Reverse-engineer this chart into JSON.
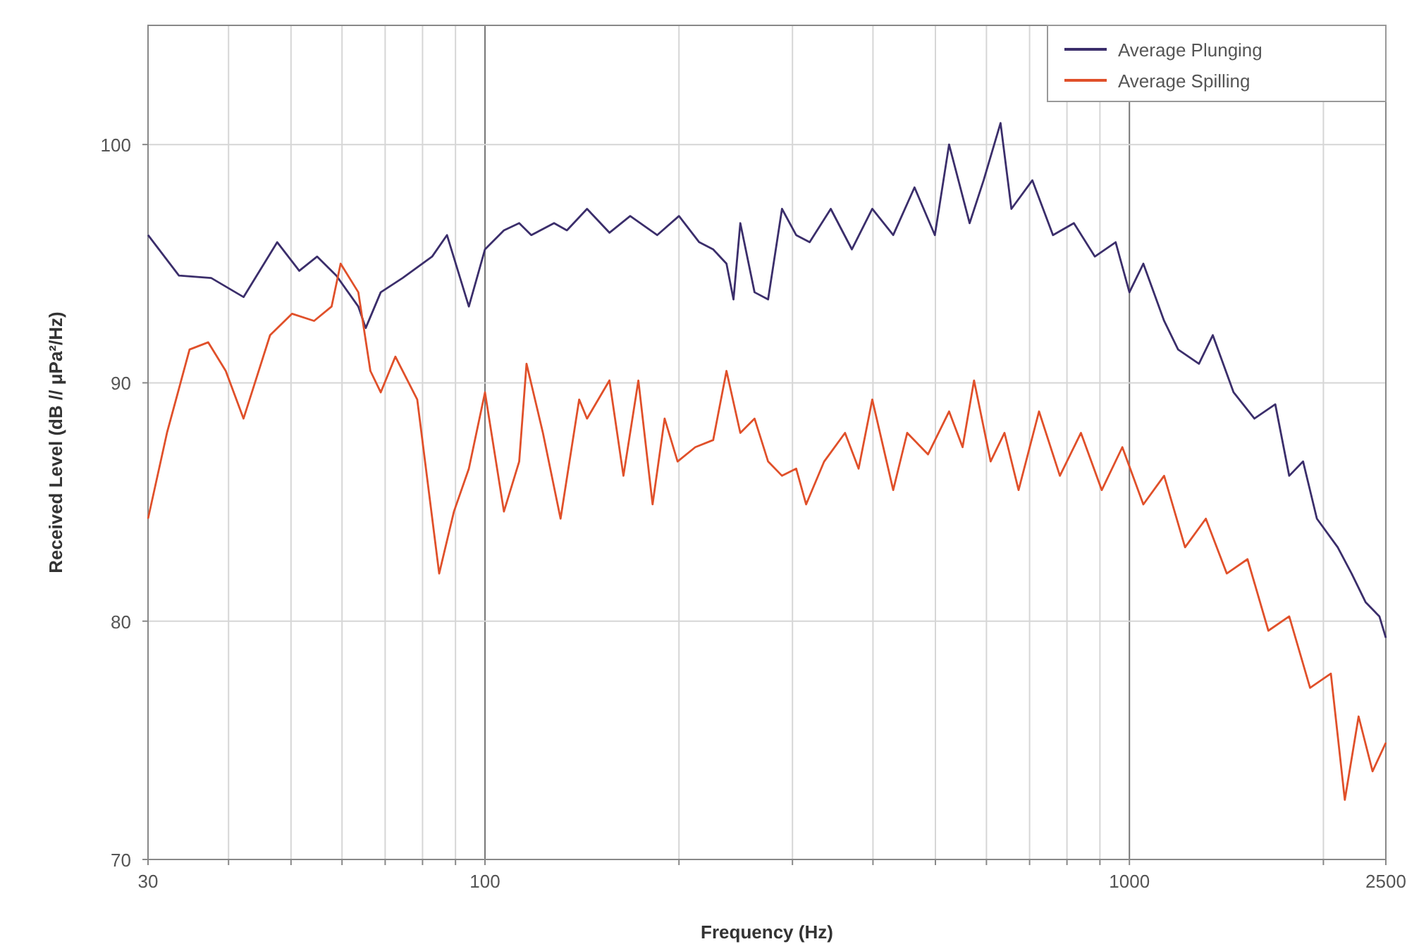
{
  "chart_data": {
    "type": "line",
    "xlabel": "Frequency (Hz)",
    "ylabel": "Received Level (dB // μPa²/Hz)",
    "log": "x",
    "grid": true,
    "legend": "top right",
    "line_style": "solid",
    "marker": "none",
    "xlim": [
      30,
      2500
    ],
    "ylim": [
      70,
      105
    ],
    "xticks": [
      30,
      {
        "value": 40,
        "label": null
      },
      {
        "value": 50,
        "label": null
      },
      {
        "value": 60,
        "label": null
      },
      {
        "value": 70,
        "label": null
      },
      {
        "value": 80,
        "label": null
      },
      {
        "value": 90,
        "label": null
      },
      100,
      {
        "value": 200,
        "label": null
      },
      {
        "value": 300,
        "label": null
      },
      {
        "value": 400,
        "label": null
      },
      {
        "value": 500,
        "label": null
      },
      {
        "value": 600,
        "label": null
      },
      {
        "value": 700,
        "label": null
      },
      {
        "value": 800,
        "label": null
      },
      {
        "value": 900,
        "label": null
      },
      1000,
      {
        "value": 2000,
        "label": null
      },
      2500
    ],
    "yticks": [
      70,
      80,
      90,
      100
    ],
    "series": [
      {
        "name": "Average Plunging",
        "color": "#3b2e6b",
        "x": [
          30,
          33.5,
          37.6,
          42.2,
          47.6,
          51.5,
          54.9,
          58.8,
          63.6,
          65.3,
          68.9,
          74.5,
          82.8,
          87.3,
          94.4,
          100,
          107,
          113,
          118,
          128,
          134,
          144,
          156,
          168,
          185,
          200,
          215,
          226,
          237,
          243,
          249,
          262,
          275,
          289,
          304,
          319,
          344,
          371,
          399,
          430,
          464,
          499,
          525,
          565,
          594,
          631,
          656,
          707,
          761,
          820,
          884,
          952,
          1000,
          1051,
          1132,
          1190,
          1282,
          1347,
          1451,
          1563,
          1684,
          1770,
          1860,
          1954,
          2105,
          2212,
          2325,
          2443,
          2500
        ],
        "values": [
          96.2,
          94.5,
          94.4,
          93.6,
          95.9,
          94.7,
          95.3,
          94.5,
          93.2,
          92.3,
          93.8,
          94.4,
          95.3,
          96.2,
          93.2,
          95.6,
          96.4,
          96.7,
          96.2,
          96.7,
          96.4,
          97.3,
          96.3,
          97.0,
          96.2,
          97.0,
          95.9,
          95.6,
          95.0,
          93.5,
          96.7,
          93.8,
          93.5,
          97.3,
          96.2,
          95.9,
          97.3,
          95.6,
          97.3,
          96.2,
          98.2,
          96.2,
          100,
          96.7,
          98.5,
          100.9,
          97.3,
          98.5,
          96.2,
          96.7,
          95.3,
          95.9,
          93.8,
          95.0,
          92.6,
          91.4,
          90.8,
          92.0,
          89.6,
          88.5,
          89.1,
          86.1,
          86.7,
          84.3,
          83.1,
          82.0,
          80.8,
          80.2,
          79.3
        ]
      },
      {
        "name": "Average Spilling",
        "color": "#e0502a",
        "x": [
          30,
          32.1,
          34.8,
          37.2,
          39.6,
          42.2,
          46.4,
          50.2,
          54.3,
          57.8,
          59.7,
          63.6,
          66.4,
          68.9,
          72.6,
          78.5,
          84.9,
          89.5,
          94.4,
          100,
          107,
          113,
          116,
          123,
          131,
          140,
          144,
          156,
          164,
          173,
          182,
          190,
          199,
          212,
          226,
          237,
          249,
          262,
          275,
          289,
          304,
          315,
          336,
          362,
          380,
          399,
          430,
          452,
          487,
          525,
          551,
          574,
          609,
          640,
          673,
          724,
          780,
          841,
          906,
          975,
          1051,
          1132,
          1220,
          1314,
          1416,
          1525,
          1643,
          1770,
          1907,
          2054,
          2159,
          2268,
          2384,
          2500
        ],
        "values": [
          84.3,
          87.9,
          91.4,
          91.7,
          90.5,
          88.5,
          92.0,
          92.9,
          92.6,
          93.2,
          95.0,
          93.8,
          90.5,
          89.6,
          91.1,
          89.3,
          82.0,
          84.6,
          86.4,
          89.6,
          84.6,
          86.7,
          90.8,
          87.9,
          84.3,
          89.3,
          88.5,
          90.1,
          86.1,
          90.1,
          84.9,
          88.5,
          86.7,
          87.3,
          87.6,
          90.5,
          87.9,
          88.5,
          86.7,
          86.1,
          86.4,
          84.9,
          86.7,
          87.9,
          86.4,
          89.3,
          85.5,
          87.9,
          87.0,
          88.8,
          87.3,
          90.1,
          86.7,
          87.9,
          85.5,
          88.8,
          86.1,
          87.9,
          85.5,
          87.3,
          84.9,
          86.1,
          83.1,
          84.3,
          82.0,
          82.6,
          79.6,
          80.2,
          77.2,
          77.8,
          72.5,
          76.0,
          73.7,
          74.9
        ]
      }
    ]
  }
}
